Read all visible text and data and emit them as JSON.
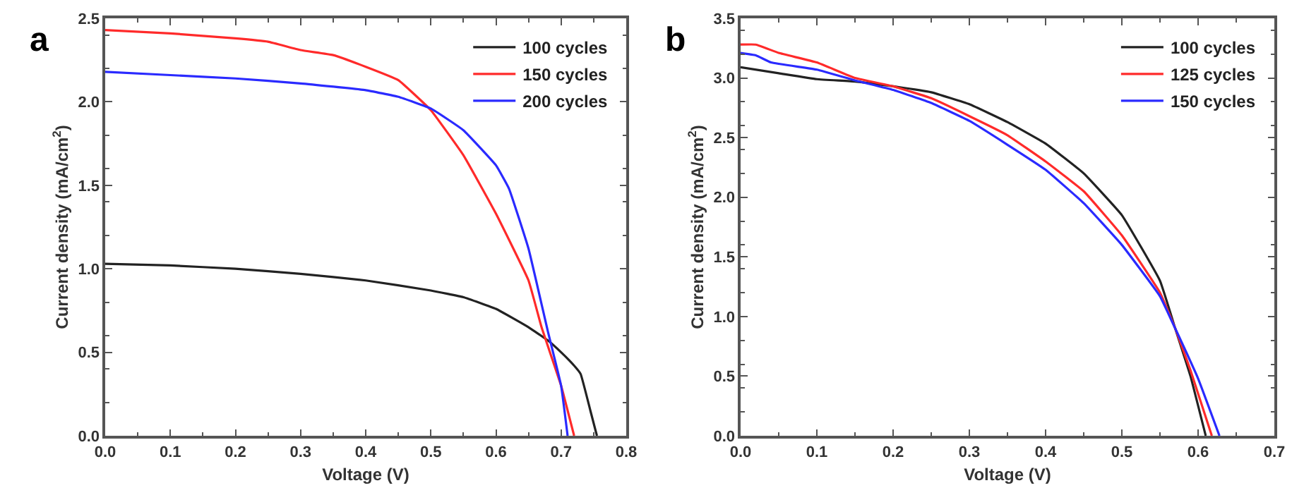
{
  "chart_data": [
    {
      "type": "line",
      "title": "a",
      "xlabel": "Voltage (V)",
      "ylabel": "Current density (mA/cm$^{2}$)",
      "xlim": [
        0,
        0.8
      ],
      "ylim": [
        0,
        2.5
      ],
      "xticks": [
        {
          "value": 0,
          "label": "0.0"
        },
        0.1,
        0.2,
        0.3,
        0.4,
        0.5,
        0.6,
        0.7,
        0.8
      ],
      "yticks": [
        {
          "value": 0,
          "label": "0.0"
        },
        0.5,
        {
          "value": 1,
          "label": "1.0"
        },
        1.5,
        {
          "value": 2,
          "label": "2.0"
        },
        2.5
      ],
      "legend": "top right",
      "marker": "none",
      "line_style": "solid",
      "series": [
        {
          "name": "100 cycles",
          "color": "#222222",
          "x": [
            0,
            0.1,
            0.2,
            0.3,
            0.4,
            0.5,
            0.55,
            0.6,
            0.65,
            0.68,
            0.7,
            0.72,
            0.73,
            0.745,
            0.755
          ],
          "values": [
            1.03,
            1.02,
            1.0,
            0.97,
            0.93,
            0.87,
            0.83,
            0.76,
            0.65,
            0.57,
            0.5,
            0.42,
            0.37,
            0.15,
            0
          ]
        },
        {
          "name": "150 cycles",
          "color": "#ff2a2a",
          "x": [
            0,
            0.1,
            0.2,
            0.25,
            0.3,
            0.35,
            0.4,
            0.45,
            0.5,
            0.55,
            0.6,
            0.65,
            0.67,
            0.7,
            0.72
          ],
          "values": [
            2.43,
            2.41,
            2.38,
            2.36,
            2.31,
            2.28,
            2.21,
            2.13,
            1.95,
            1.68,
            1.33,
            0.93,
            0.65,
            0.3,
            0
          ]
        },
        {
          "name": "200 cycles",
          "color": "#2a2aff",
          "x": [
            0,
            0.1,
            0.2,
            0.3,
            0.4,
            0.45,
            0.5,
            0.55,
            0.6,
            0.62,
            0.65,
            0.68,
            0.7,
            0.71
          ],
          "values": [
            2.18,
            2.16,
            2.14,
            2.11,
            2.07,
            2.03,
            1.96,
            1.83,
            1.62,
            1.48,
            1.12,
            0.62,
            0.3,
            0
          ]
        }
      ]
    },
    {
      "type": "line",
      "title": "b",
      "xlabel": "Voltage (V)",
      "ylabel": "Current density (mA/cm$^{2}$)",
      "xlim": [
        0,
        0.7
      ],
      "ylim": [
        0,
        3.5
      ],
      "xticks": [
        {
          "value": 0,
          "label": "0.0"
        },
        0.1,
        0.2,
        0.3,
        0.4,
        0.5,
        0.6,
        0.7
      ],
      "yticks": [
        {
          "value": 0,
          "label": "0.0"
        },
        0.5,
        {
          "value": 1,
          "label": "1.0"
        },
        1.5,
        {
          "value": 2,
          "label": "2.0"
        },
        2.5,
        {
          "value": 3,
          "label": "3.0"
        },
        3.5
      ],
      "legend": "top right",
      "marker": "none",
      "line_style": "solid",
      "series": [
        {
          "name": "100 cycles",
          "color": "#222222",
          "x": [
            0,
            0.05,
            0.1,
            0.15,
            0.2,
            0.25,
            0.3,
            0.35,
            0.4,
            0.45,
            0.5,
            0.55,
            0.57,
            0.59,
            0.61
          ],
          "values": [
            3.09,
            3.04,
            2.99,
            2.97,
            2.93,
            2.88,
            2.78,
            2.63,
            2.45,
            2.2,
            1.85,
            1.3,
            0.9,
            0.5,
            0
          ]
        },
        {
          "name": "125 cycles",
          "color": "#ff2a2a",
          "x": [
            0,
            0.02,
            0.05,
            0.1,
            0.15,
            0.2,
            0.25,
            0.3,
            0.35,
            0.4,
            0.45,
            0.5,
            0.55,
            0.57,
            0.59,
            0.618
          ],
          "values": [
            3.28,
            3.28,
            3.21,
            3.13,
            3.0,
            2.93,
            2.83,
            2.68,
            2.52,
            2.3,
            2.05,
            1.68,
            1.2,
            0.9,
            0.55,
            0
          ]
        },
        {
          "name": "150 cycles",
          "color": "#2a2aff",
          "x": [
            0,
            0.02,
            0.04,
            0.1,
            0.15,
            0.2,
            0.25,
            0.3,
            0.35,
            0.4,
            0.45,
            0.5,
            0.55,
            0.57,
            0.6,
            0.628
          ],
          "values": [
            3.21,
            3.19,
            3.13,
            3.07,
            2.98,
            2.9,
            2.79,
            2.64,
            2.44,
            2.23,
            1.95,
            1.6,
            1.17,
            0.9,
            0.48,
            0
          ]
        }
      ]
    }
  ]
}
